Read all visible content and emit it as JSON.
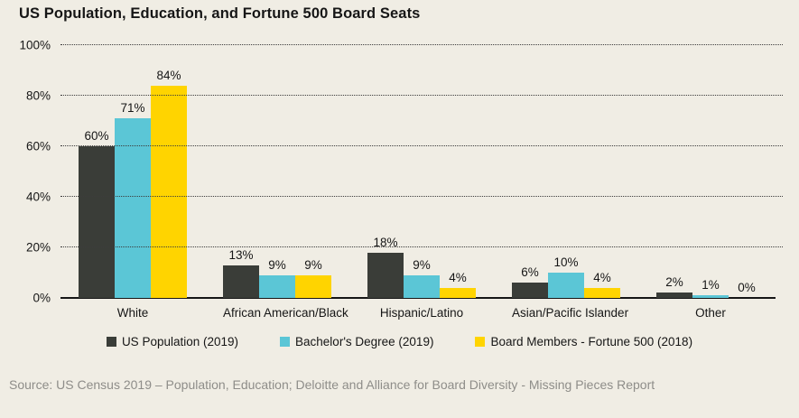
{
  "page": {
    "background": "#f0ede4"
  },
  "title": "US Population, Education, and Fortune 500 Board Seats",
  "source": "Source: US Census 2019 – Population, Education; Deloitte and Alliance for Board Diversity - Missing Pieces Report",
  "colors": {
    "background": "#f0ede4",
    "text": "#161616",
    "gridline": "#3c3c3c",
    "source_text": "#8e8d89",
    "series_dark": "#3a3d38",
    "series_cyan": "#5bc6d6",
    "series_yellow": "#ffd400"
  },
  "chart_data": {
    "type": "bar",
    "title": "US Population, Education, and Fortune 500 Board Seats",
    "categories": [
      "White",
      "African American/Black",
      "Hispanic/Latino",
      "Asian/Pacific Islander",
      "Other"
    ],
    "series": [
      {
        "name": "US Population (2019)",
        "color": "#3a3d38",
        "values": [
          60,
          13,
          18,
          6,
          2
        ]
      },
      {
        "name": "Bachelor's Degree (2019)",
        "color": "#5bc6d6",
        "values": [
          71,
          9,
          9,
          10,
          1
        ]
      },
      {
        "name": "Board Members - Fortune 500 (2018)",
        "color": "#ffd400",
        "values": [
          84,
          9,
          4,
          4,
          0
        ]
      }
    ],
    "data_labels": [
      [
        "60%",
        "13%",
        "18%",
        "6%",
        "2%"
      ],
      [
        "71%",
        "9%",
        "9%",
        "10%",
        "1%"
      ],
      [
        "84%",
        "9%",
        "4%",
        "4%",
        "0%"
      ]
    ],
    "value_suffix": "%",
    "xlabel": "",
    "ylabel": "",
    "ylim": [
      0,
      100
    ],
    "yticks": [
      "0%",
      "20%",
      "40%",
      "60%",
      "80%",
      "100%"
    ],
    "ytick_values": [
      0,
      20,
      40,
      60,
      80,
      100
    ],
    "grid": "horizontal dotted",
    "legend_position": "bottom"
  }
}
